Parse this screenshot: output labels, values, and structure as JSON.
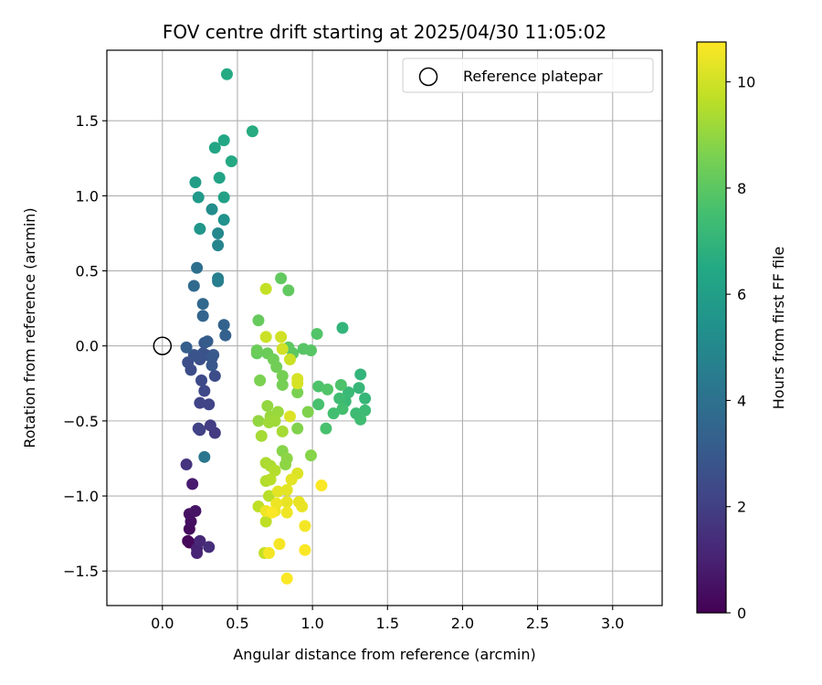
{
  "chart_data": {
    "type": "scatter",
    "title": "FOV centre drift starting at 2025/04/30 11:05:02",
    "xlabel": "Angular distance from reference (arcmin)",
    "ylabel": "Rotation from reference (arcmin)",
    "xlim": [
      -0.37,
      3.33
    ],
    "ylim": [
      -1.73,
      1.97
    ],
    "xticks": [
      0.0,
      0.5,
      1.0,
      1.5,
      2.0,
      2.5,
      3.0
    ],
    "xtick_labels": [
      "0.0",
      "0.5",
      "1.0",
      "1.5",
      "2.0",
      "2.5",
      "3.0"
    ],
    "yticks": [
      -1.5,
      -1.0,
      -0.5,
      0.0,
      0.5,
      1.0,
      1.5
    ],
    "ytick_labels": [
      "−1.5",
      "−1.0",
      "−0.5",
      "0.0",
      "0.5",
      "1.0",
      "1.5"
    ],
    "grid": true,
    "legend": {
      "placement": "upper right",
      "entries": [
        "Reference platepar"
      ]
    },
    "reference_point": {
      "x": 0.0,
      "y": 0.0,
      "label": "Reference platepar"
    },
    "colorbar": {
      "label": "Hours from first FF file",
      "colormap": "viridis",
      "range": [
        0,
        10.75
      ],
      "ticks": [
        0,
        2,
        4,
        6,
        8,
        10
      ],
      "tick_labels": [
        "0",
        "2",
        "4",
        "6",
        "8",
        "10"
      ]
    },
    "points": [
      {
        "x": 0.18,
        "y": -1.31,
        "c": 0.1
      },
      {
        "x": 0.17,
        "y": -1.3,
        "c": 0.2
      },
      {
        "x": 0.18,
        "y": -1.22,
        "c": 0.3
      },
      {
        "x": 0.19,
        "y": -1.17,
        "c": 0.4
      },
      {
        "x": 0.18,
        "y": -1.12,
        "c": 0.5
      },
      {
        "x": 0.22,
        "y": -1.1,
        "c": 0.6
      },
      {
        "x": 0.2,
        "y": -0.92,
        "c": 0.8
      },
      {
        "x": 0.23,
        "y": -1.35,
        "c": 1.0
      },
      {
        "x": 0.23,
        "y": -1.38,
        "c": 1.1
      },
      {
        "x": 0.25,
        "y": -1.3,
        "c": 1.2
      },
      {
        "x": 0.31,
        "y": -1.34,
        "c": 1.4
      },
      {
        "x": 0.16,
        "y": -0.79,
        "c": 1.6
      },
      {
        "x": 0.35,
        "y": -0.58,
        "c": 1.8
      },
      {
        "x": 0.32,
        "y": -0.53,
        "c": 1.9
      },
      {
        "x": 0.25,
        "y": -0.56,
        "c": 2.0
      },
      {
        "x": 0.24,
        "y": -0.55,
        "c": 2.1
      },
      {
        "x": 0.25,
        "y": -0.38,
        "c": 2.2
      },
      {
        "x": 0.31,
        "y": -0.39,
        "c": 2.2
      },
      {
        "x": 0.28,
        "y": -0.3,
        "c": 2.3
      },
      {
        "x": 0.26,
        "y": -0.23,
        "c": 2.4
      },
      {
        "x": 0.35,
        "y": -0.2,
        "c": 2.5
      },
      {
        "x": 0.19,
        "y": -0.16,
        "c": 2.5
      },
      {
        "x": 0.17,
        "y": -0.11,
        "c": 2.6
      },
      {
        "x": 0.25,
        "y": -0.09,
        "c": 2.6
      },
      {
        "x": 0.29,
        "y": -0.06,
        "c": 2.7
      },
      {
        "x": 0.23,
        "y": -0.07,
        "c": 2.7
      },
      {
        "x": 0.21,
        "y": -0.06,
        "c": 2.8
      },
      {
        "x": 0.27,
        "y": -0.05,
        "c": 2.8
      },
      {
        "x": 0.33,
        "y": -0.08,
        "c": 2.9
      },
      {
        "x": 0.33,
        "y": -0.13,
        "c": 2.9
      },
      {
        "x": 0.34,
        "y": -0.06,
        "c": 3.0
      },
      {
        "x": 0.28,
        "y": 0.02,
        "c": 3.0
      },
      {
        "x": 0.3,
        "y": 0.03,
        "c": 3.1
      },
      {
        "x": 0.16,
        "y": -0.01,
        "c": 3.2
      },
      {
        "x": 0.42,
        "y": 0.07,
        "c": 3.3
      },
      {
        "x": 0.41,
        "y": 0.14,
        "c": 3.4
      },
      {
        "x": 0.27,
        "y": 0.2,
        "c": 3.5
      },
      {
        "x": 0.27,
        "y": 0.28,
        "c": 3.6
      },
      {
        "x": 0.21,
        "y": 0.4,
        "c": 3.7
      },
      {
        "x": 0.23,
        "y": 0.52,
        "c": 3.9
      },
      {
        "x": 0.28,
        "y": -0.74,
        "c": 4.2
      },
      {
        "x": 0.37,
        "y": 0.43,
        "c": 4.5
      },
      {
        "x": 0.37,
        "y": 0.45,
        "c": 4.6
      },
      {
        "x": 0.37,
        "y": 0.67,
        "c": 4.8
      },
      {
        "x": 0.37,
        "y": 0.75,
        "c": 5.0
      },
      {
        "x": 0.33,
        "y": 0.91,
        "c": 5.2
      },
      {
        "x": 0.41,
        "y": 0.84,
        "c": 5.4
      },
      {
        "x": 0.25,
        "y": 0.78,
        "c": 5.6
      },
      {
        "x": 0.24,
        "y": 0.99,
        "c": 5.8
      },
      {
        "x": 0.22,
        "y": 1.09,
        "c": 6.0
      },
      {
        "x": 0.41,
        "y": 0.99,
        "c": 6.1
      },
      {
        "x": 0.38,
        "y": 1.12,
        "c": 6.2
      },
      {
        "x": 0.35,
        "y": 1.32,
        "c": 6.3
      },
      {
        "x": 0.41,
        "y": 1.37,
        "c": 6.4
      },
      {
        "x": 0.46,
        "y": 1.23,
        "c": 6.5
      },
      {
        "x": 0.6,
        "y": 1.43,
        "c": 6.6
      },
      {
        "x": 0.43,
        "y": 1.81,
        "c": 6.5
      },
      {
        "x": 1.2,
        "y": 0.12,
        "c": 7.0
      },
      {
        "x": 1.32,
        "y": -0.19,
        "c": 7.0
      },
      {
        "x": 1.35,
        "y": -0.35,
        "c": 7.1
      },
      {
        "x": 1.31,
        "y": -0.28,
        "c": 7.1
      },
      {
        "x": 1.24,
        "y": -0.31,
        "c": 7.2
      },
      {
        "x": 1.22,
        "y": -0.37,
        "c": 7.2
      },
      {
        "x": 1.35,
        "y": -0.43,
        "c": 7.3
      },
      {
        "x": 1.29,
        "y": -0.45,
        "c": 7.3
      },
      {
        "x": 1.32,
        "y": -0.49,
        "c": 7.4
      },
      {
        "x": 1.18,
        "y": -0.35,
        "c": 7.4
      },
      {
        "x": 1.2,
        "y": -0.42,
        "c": 7.5
      },
      {
        "x": 1.14,
        "y": -0.45,
        "c": 7.5
      },
      {
        "x": 1.09,
        "y": -0.55,
        "c": 7.6
      },
      {
        "x": 1.04,
        "y": -0.39,
        "c": 7.6
      },
      {
        "x": 1.19,
        "y": -0.26,
        "c": 7.7
      },
      {
        "x": 1.04,
        "y": -0.27,
        "c": 7.7
      },
      {
        "x": 1.1,
        "y": -0.29,
        "c": 7.8
      },
      {
        "x": 1.03,
        "y": 0.08,
        "c": 7.8
      },
      {
        "x": 0.99,
        "y": -0.03,
        "c": 7.9
      },
      {
        "x": 0.94,
        "y": -0.02,
        "c": 7.9
      },
      {
        "x": 0.87,
        "y": -0.05,
        "c": 8.0
      },
      {
        "x": 0.84,
        "y": -0.01,
        "c": 8.0
      },
      {
        "x": 0.79,
        "y": 0.45,
        "c": 8.1
      },
      {
        "x": 0.84,
        "y": 0.37,
        "c": 8.1
      },
      {
        "x": 0.64,
        "y": 0.17,
        "c": 8.2
      },
      {
        "x": 0.63,
        "y": -0.05,
        "c": 8.2
      },
      {
        "x": 0.63,
        "y": -0.03,
        "c": 8.3
      },
      {
        "x": 0.7,
        "y": -0.05,
        "c": 8.3
      },
      {
        "x": 0.74,
        "y": -0.09,
        "c": 8.4
      },
      {
        "x": 0.76,
        "y": -0.14,
        "c": 8.4
      },
      {
        "x": 0.8,
        "y": -0.2,
        "c": 8.5
      },
      {
        "x": 0.8,
        "y": -0.26,
        "c": 8.5
      },
      {
        "x": 0.65,
        "y": -0.23,
        "c": 8.6
      },
      {
        "x": 0.9,
        "y": -0.31,
        "c": 8.6
      },
      {
        "x": 0.97,
        "y": -0.44,
        "c": 8.7
      },
      {
        "x": 0.9,
        "y": -0.55,
        "c": 8.7
      },
      {
        "x": 0.99,
        "y": -0.73,
        "c": 8.8
      },
      {
        "x": 0.8,
        "y": -0.7,
        "c": 8.8
      },
      {
        "x": 0.83,
        "y": -0.75,
        "c": 8.9
      },
      {
        "x": 0.82,
        "y": -0.79,
        "c": 8.9
      },
      {
        "x": 0.7,
        "y": -0.4,
        "c": 9.0
      },
      {
        "x": 0.64,
        "y": -0.5,
        "c": 9.0
      },
      {
        "x": 0.72,
        "y": -0.47,
        "c": 9.1
      },
      {
        "x": 0.77,
        "y": -0.44,
        "c": 9.1
      },
      {
        "x": 0.71,
        "y": -0.51,
        "c": 9.2
      },
      {
        "x": 0.75,
        "y": -0.5,
        "c": 9.2
      },
      {
        "x": 0.8,
        "y": -0.57,
        "c": 9.3
      },
      {
        "x": 0.66,
        "y": -0.6,
        "c": 9.3
      },
      {
        "x": 0.69,
        "y": -0.78,
        "c": 9.4
      },
      {
        "x": 0.72,
        "y": -0.8,
        "c": 9.4
      },
      {
        "x": 0.75,
        "y": -0.83,
        "c": 9.5
      },
      {
        "x": 0.69,
        "y": -0.9,
        "c": 9.5
      },
      {
        "x": 0.72,
        "y": -0.89,
        "c": 9.6
      },
      {
        "x": 0.71,
        "y": -1.0,
        "c": 9.6
      },
      {
        "x": 0.64,
        "y": -1.07,
        "c": 9.7
      },
      {
        "x": 0.69,
        "y": -1.17,
        "c": 9.7
      },
      {
        "x": 0.68,
        "y": -1.38,
        "c": 9.8
      },
      {
        "x": 0.69,
        "y": 0.38,
        "c": 9.8
      },
      {
        "x": 0.69,
        "y": 0.06,
        "c": 9.9
      },
      {
        "x": 0.85,
        "y": -0.09,
        "c": 9.9
      },
      {
        "x": 0.79,
        "y": 0.06,
        "c": 10.0
      },
      {
        "x": 0.8,
        "y": -0.02,
        "c": 10.0
      },
      {
        "x": 0.9,
        "y": -0.22,
        "c": 10.1
      },
      {
        "x": 0.9,
        "y": -0.25,
        "c": 10.1
      },
      {
        "x": 0.85,
        "y": -0.47,
        "c": 10.2
      },
      {
        "x": 0.9,
        "y": -0.85,
        "c": 10.2
      },
      {
        "x": 0.86,
        "y": -0.89,
        "c": 10.3
      },
      {
        "x": 0.83,
        "y": -0.96,
        "c": 10.3
      },
      {
        "x": 0.77,
        "y": -0.97,
        "c": 10.3
      },
      {
        "x": 0.83,
        "y": -1.04,
        "c": 10.4
      },
      {
        "x": 0.91,
        "y": -1.04,
        "c": 10.4
      },
      {
        "x": 0.93,
        "y": -1.07,
        "c": 10.4
      },
      {
        "x": 0.76,
        "y": -1.05,
        "c": 10.5
      },
      {
        "x": 0.75,
        "y": -1.1,
        "c": 10.5
      },
      {
        "x": 0.83,
        "y": -1.11,
        "c": 10.5
      },
      {
        "x": 0.69,
        "y": -1.1,
        "c": 10.5
      },
      {
        "x": 0.95,
        "y": -1.2,
        "c": 10.6
      },
      {
        "x": 0.78,
        "y": -1.32,
        "c": 10.6
      },
      {
        "x": 0.71,
        "y": -1.38,
        "c": 10.6
      },
      {
        "x": 0.95,
        "y": -1.36,
        "c": 10.7
      },
      {
        "x": 0.83,
        "y": -1.55,
        "c": 10.7
      },
      {
        "x": 1.06,
        "y": -0.93,
        "c": 10.7
      },
      {
        "x": 0.73,
        "y": -1.11,
        "c": 10.7
      }
    ]
  }
}
